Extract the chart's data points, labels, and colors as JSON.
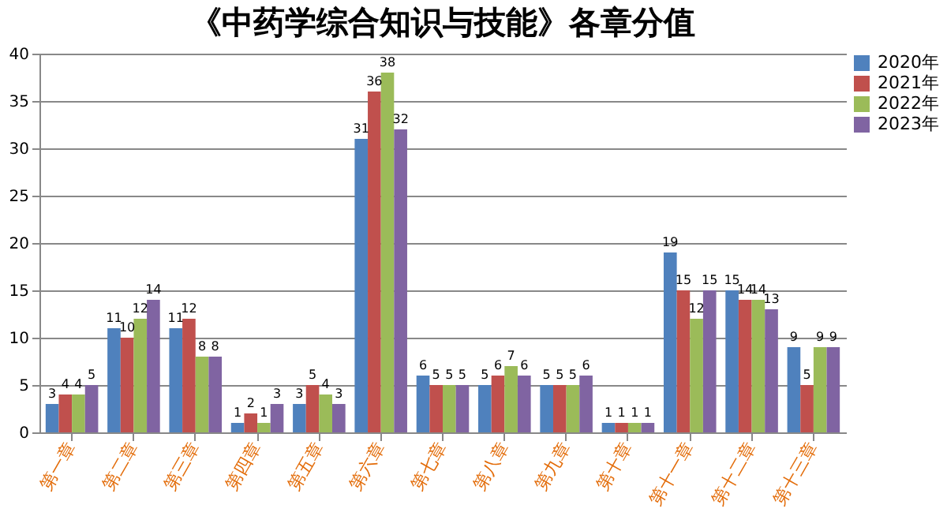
{
  "chart_data": {
    "type": "bar",
    "title": "《中药学综合知识与技能》各章分值",
    "categories": [
      "第一章",
      "第二章",
      "第三章",
      "第四章",
      "第五章",
      "第六章",
      "第七章",
      "第八章",
      "第九章",
      "第十章",
      "第十一章",
      "第十二章",
      "第十三章"
    ],
    "series": [
      {
        "name": "2020年",
        "color": "#4f81bd",
        "values": [
          3,
          11,
          11,
          1,
          3,
          31,
          6,
          5,
          5,
          1,
          19,
          15,
          9
        ]
      },
      {
        "name": "2021年",
        "color": "#c0504d",
        "values": [
          4,
          10,
          12,
          2,
          5,
          36,
          5,
          6,
          5,
          1,
          15,
          14,
          5
        ]
      },
      {
        "name": "2022年",
        "color": "#9bbb59",
        "values": [
          4,
          12,
          8,
          1,
          4,
          38,
          5,
          7,
          5,
          1,
          12,
          14,
          9
        ]
      },
      {
        "name": "2023年",
        "color": "#8064a2",
        "values": [
          5,
          14,
          8,
          3,
          3,
          32,
          5,
          6,
          6,
          1,
          15,
          13,
          9
        ]
      }
    ],
    "ylim": [
      0,
      40
    ],
    "yticks": [
      0,
      5,
      10,
      15,
      20,
      25,
      30,
      35,
      40
    ],
    "grid": "y",
    "legend": "right",
    "data_labels": true
  }
}
